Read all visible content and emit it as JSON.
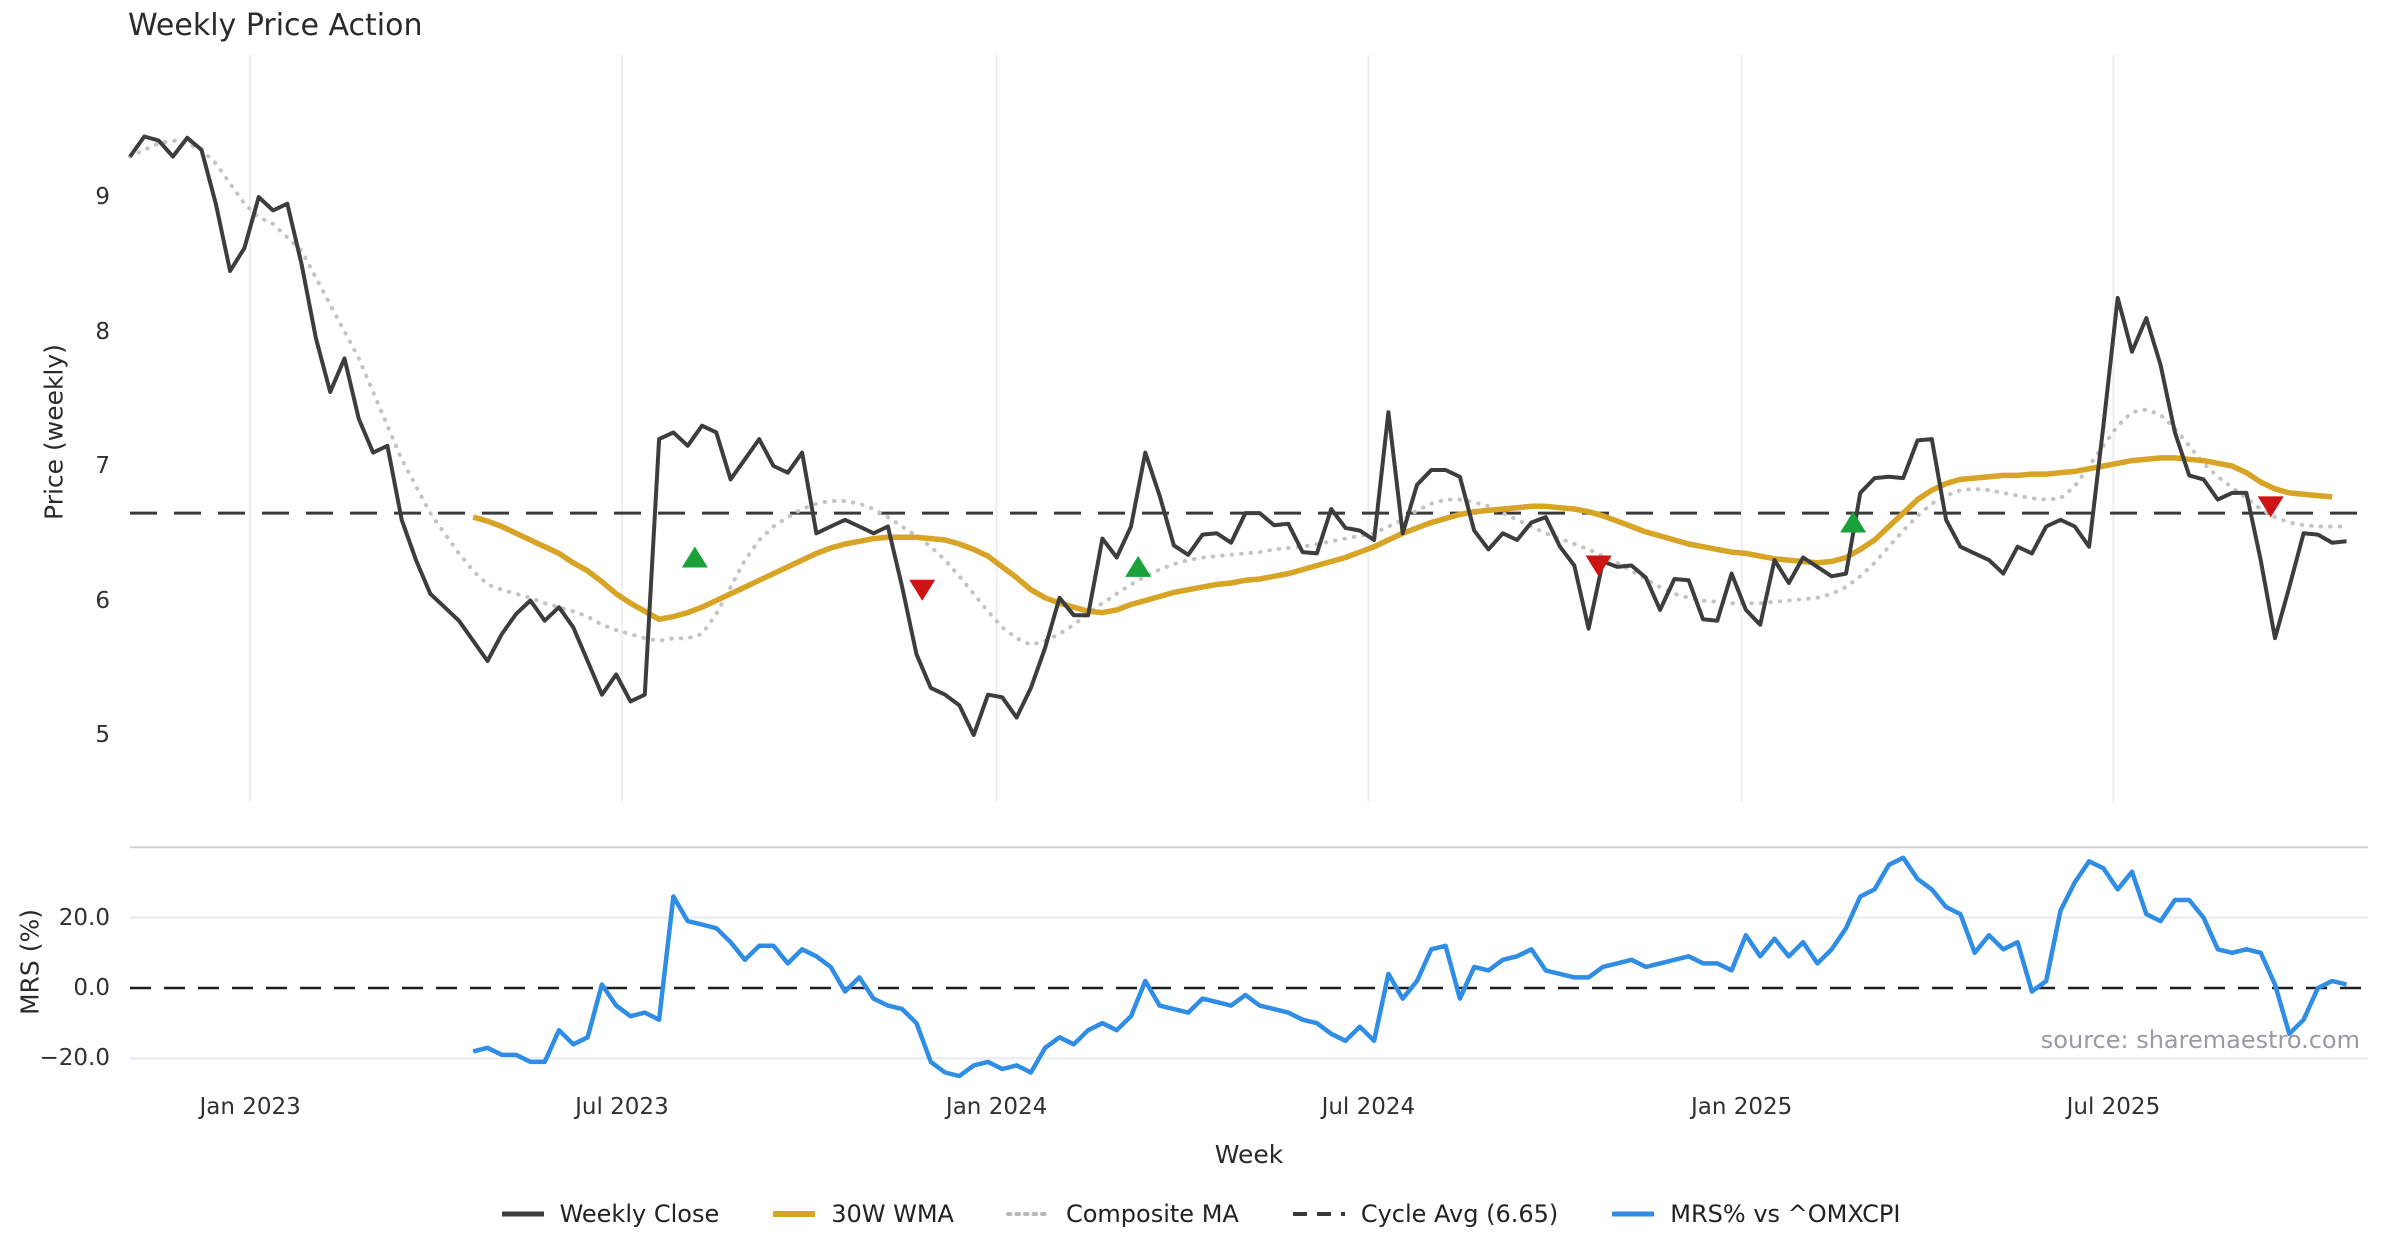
{
  "title": "Weekly Price Action",
  "axes": {
    "price_label": "Price (weekly)",
    "mrs_label": "MRS (%)",
    "x_label": "Week"
  },
  "source": "source: sharemaestro.com",
  "legend": {
    "items": [
      {
        "label": "Weekly Close",
        "style": "solid",
        "color": "#3d3d3d"
      },
      {
        "label": "30W WMA",
        "style": "solid",
        "color": "#d7a426"
      },
      {
        "label": "Composite MA",
        "style": "dotted",
        "color": "#b9b9b9"
      },
      {
        "label": "Cycle Avg (6.65)",
        "style": "dashed",
        "color": "#3a3a3a"
      },
      {
        "label": "MRS% vs ^OMXCPI",
        "style": "solid",
        "color": "#2f8de6"
      }
    ]
  },
  "chart_data": {
    "type": "line",
    "panels": [
      {
        "name": "price",
        "ylabel": "Price (weekly)",
        "ylim": [
          4.6,
          9.8
        ],
        "yticks": [
          {
            "label": "9",
            "v": 9
          },
          {
            "label": "8",
            "v": 8
          },
          {
            "label": "7",
            "v": 7
          },
          {
            "label": "6",
            "v": 6
          },
          {
            "label": "5",
            "v": 5
          }
        ],
        "reference_line": {
          "name": "Cycle Avg",
          "value": 6.65,
          "style": "dashed"
        }
      },
      {
        "name": "mrs",
        "ylabel": "MRS (%)",
        "ylim": [
          -28,
          40
        ],
        "yticks": [
          {
            "label": "20.0",
            "v": 20
          },
          {
            "label": "0.0",
            "v": 0
          },
          {
            "label": "−20.0",
            "v": -20
          }
        ],
        "reference_line": {
          "name": "zero",
          "value": 0,
          "style": "dashed"
        }
      }
    ],
    "xlabel": "Week",
    "x_unit": "weeks since 2022-11-06",
    "xticks": [
      {
        "label": "Jan 2023",
        "week": 8.4
      },
      {
        "label": "Jul 2023",
        "week": 34.4
      },
      {
        "label": "Jan 2024",
        "week": 60.6
      },
      {
        "label": "Jul 2024",
        "week": 86.6
      },
      {
        "label": "Jan 2025",
        "week": 112.7
      },
      {
        "label": "Jul 2025",
        "week": 138.7
      }
    ],
    "series": [
      {
        "name": "Weekly Close",
        "panel": "price",
        "color": "#3d3d3d",
        "style": "solid",
        "width": 4,
        "start_week": 0,
        "values": [
          9.3,
          9.45,
          9.42,
          9.3,
          9.44,
          9.35,
          8.95,
          8.45,
          8.62,
          9.0,
          8.9,
          8.95,
          8.5,
          7.95,
          7.55,
          7.8,
          7.35,
          7.1,
          7.15,
          6.6,
          6.3,
          6.05,
          5.95,
          5.85,
          5.7,
          5.55,
          5.75,
          5.9,
          6.0,
          5.85,
          5.95,
          5.8,
          5.55,
          5.3,
          5.45,
          5.25,
          5.3,
          7.2,
          7.25,
          7.15,
          7.3,
          7.25,
          6.9,
          7.05,
          7.2,
          7.0,
          6.95,
          7.1,
          6.5,
          6.55,
          6.6,
          6.55,
          6.5,
          6.55,
          6.1,
          5.6,
          5.35,
          5.3,
          5.22,
          5.0,
          5.3,
          5.28,
          5.13,
          5.35,
          5.65,
          6.02,
          5.89,
          5.89,
          6.46,
          6.32,
          6.55,
          7.1,
          6.78,
          6.41,
          6.34,
          6.49,
          6.5,
          6.43,
          6.65,
          6.65,
          6.56,
          6.57,
          6.36,
          6.35,
          6.68,
          6.54,
          6.52,
          6.45,
          7.4,
          6.5,
          6.86,
          6.97,
          6.97,
          6.92,
          6.52,
          6.38,
          6.5,
          6.45,
          6.58,
          6.62,
          6.4,
          6.26,
          5.79,
          6.29,
          6.25,
          6.26,
          6.17,
          5.93,
          6.16,
          6.15,
          5.86,
          5.85,
          6.2,
          5.93,
          5.82,
          6.3,
          6.13,
          6.32,
          6.25,
          6.18,
          6.2,
          6.8,
          6.91,
          6.92,
          6.91,
          7.19,
          7.2,
          6.6,
          6.4,
          6.35,
          6.3,
          6.2,
          6.4,
          6.35,
          6.55,
          6.6,
          6.55,
          6.4,
          7.3,
          8.25,
          7.85,
          8.1,
          7.75,
          7.25,
          6.93,
          6.9,
          6.75,
          6.8,
          6.8,
          6.3,
          5.72,
          6.1,
          6.5,
          6.49,
          6.43,
          6.44
        ]
      },
      {
        "name": "30W WMA",
        "panel": "price",
        "color": "#d7a426",
        "style": "solid",
        "width": 5.5,
        "start_week": 24,
        "values": [
          6.62,
          6.59,
          6.55,
          6.5,
          6.45,
          6.4,
          6.35,
          6.28,
          6.22,
          6.14,
          6.05,
          5.98,
          5.92,
          5.86,
          5.88,
          5.91,
          5.95,
          6.0,
          6.05,
          6.1,
          6.15,
          6.2,
          6.25,
          6.3,
          6.35,
          6.39,
          6.42,
          6.44,
          6.46,
          6.47,
          6.47,
          6.47,
          6.46,
          6.45,
          6.42,
          6.38,
          6.33,
          6.25,
          6.17,
          6.08,
          6.02,
          5.98,
          5.95,
          5.92,
          5.91,
          5.93,
          5.97,
          6.0,
          6.03,
          6.06,
          6.08,
          6.1,
          6.12,
          6.13,
          6.15,
          6.16,
          6.18,
          6.2,
          6.23,
          6.26,
          6.29,
          6.32,
          6.36,
          6.4,
          6.45,
          6.5,
          6.54,
          6.58,
          6.61,
          6.64,
          6.66,
          6.67,
          6.68,
          6.69,
          6.7,
          6.7,
          6.69,
          6.68,
          6.66,
          6.63,
          6.59,
          6.55,
          6.51,
          6.48,
          6.45,
          6.42,
          6.4,
          6.38,
          6.36,
          6.35,
          6.33,
          6.31,
          6.3,
          6.29,
          6.28,
          6.29,
          6.32,
          6.38,
          6.45,
          6.55,
          6.65,
          6.75,
          6.82,
          6.87,
          6.9,
          6.91,
          6.92,
          6.93,
          6.93,
          6.94,
          6.94,
          6.95,
          6.96,
          6.98,
          7.0,
          7.02,
          7.04,
          7.05,
          7.06,
          7.06,
          7.05,
          7.04,
          7.02,
          7.0,
          6.95,
          6.88,
          6.83,
          6.8,
          6.79,
          6.78,
          6.77
        ]
      },
      {
        "name": "Composite MA",
        "panel": "price",
        "color": "#c4c4c4",
        "style": "dotted",
        "width": 4,
        "start_week": 0,
        "values": [
          9.3,
          9.35,
          9.4,
          9.42,
          9.4,
          9.35,
          9.25,
          9.1,
          8.95,
          8.85,
          8.8,
          8.7,
          8.6,
          8.4,
          8.2,
          8.0,
          7.8,
          7.55,
          7.3,
          7.05,
          6.85,
          6.65,
          6.5,
          6.35,
          6.22,
          6.12,
          6.08,
          6.05,
          6.02,
          5.98,
          5.95,
          5.92,
          5.88,
          5.82,
          5.78,
          5.75,
          5.72,
          5.7,
          5.72,
          5.72,
          5.75,
          5.9,
          6.1,
          6.3,
          6.45,
          6.55,
          6.62,
          6.68,
          6.72,
          6.74,
          6.74,
          6.72,
          6.68,
          6.62,
          6.55,
          6.48,
          6.4,
          6.3,
          6.18,
          6.05,
          5.92,
          5.8,
          5.72,
          5.67,
          5.7,
          5.75,
          5.82,
          5.9,
          5.98,
          6.05,
          6.12,
          6.18,
          6.23,
          6.27,
          6.3,
          6.32,
          6.33,
          6.34,
          6.35,
          6.36,
          6.38,
          6.39,
          6.4,
          6.42,
          6.44,
          6.46,
          6.48,
          6.5,
          6.55,
          6.6,
          6.67,
          6.72,
          6.75,
          6.75,
          6.73,
          6.7,
          6.65,
          6.6,
          6.55,
          6.5,
          6.46,
          6.42,
          6.38,
          6.33,
          6.28,
          6.22,
          6.16,
          6.1,
          6.05,
          6.02,
          6.0,
          5.99,
          5.98,
          5.98,
          5.98,
          5.99,
          6.0,
          6.01,
          6.02,
          6.05,
          6.1,
          6.18,
          6.28,
          6.4,
          6.52,
          6.63,
          6.72,
          6.78,
          6.82,
          6.83,
          6.82,
          6.8,
          6.78,
          6.76,
          6.75,
          6.76,
          6.85,
          7.0,
          7.15,
          7.3,
          7.4,
          7.42,
          7.38,
          7.28,
          7.15,
          7.02,
          6.92,
          6.84,
          6.76,
          6.68,
          6.62,
          6.58,
          6.56,
          6.55,
          6.55,
          6.55
        ]
      },
      {
        "name": "MRS% vs ^OMXCPI",
        "panel": "mrs",
        "color": "#2f8de6",
        "style": "solid",
        "width": 4.5,
        "start_week": 24,
        "values": [
          -18,
          -17,
          -19,
          -19,
          -21,
          -21,
          -12,
          -16,
          -14,
          1,
          -5,
          -8,
          -7,
          -9,
          26,
          19,
          18,
          17,
          13,
          8,
          12,
          12,
          7,
          11,
          9,
          6,
          -1,
          3,
          -3,
          -5,
          -6,
          -10,
          -21,
          -24,
          -25,
          -22,
          -21,
          -23,
          -22,
          -24,
          -17,
          -14,
          -16,
          -12,
          -10,
          -12,
          -8,
          2,
          -5,
          -6,
          -7,
          -3,
          -4,
          -5,
          -2,
          -5,
          -6,
          -7,
          -9,
          -10,
          -13,
          -15,
          -11,
          -15,
          4,
          -3,
          2,
          11,
          12,
          -3,
          6,
          5,
          8,
          9,
          11,
          5,
          4,
          3,
          3,
          6,
          7,
          8,
          6,
          7,
          8,
          9,
          7,
          7,
          5,
          15,
          9,
          14,
          9,
          13,
          7,
          11,
          17,
          26,
          28,
          35,
          37,
          31,
          28,
          23,
          21,
          10,
          15,
          11,
          13,
          -1,
          2,
          22,
          30,
          36,
          34,
          28,
          33,
          21,
          19,
          25,
          25,
          20,
          11,
          10,
          11,
          10,
          1,
          -13,
          -9,
          0,
          2,
          1
        ]
      }
    ],
    "markers": [
      {
        "type": "buy",
        "week": 39.5,
        "price": 6.32
      },
      {
        "type": "sell",
        "week": 55.4,
        "price": 6.08
      },
      {
        "type": "buy",
        "week": 70.5,
        "price": 6.25
      },
      {
        "type": "sell",
        "week": 102.7,
        "price": 6.26
      },
      {
        "type": "buy",
        "week": 120.5,
        "price": 6.58
      },
      {
        "type": "sell",
        "week": 149.7,
        "price": 6.7
      }
    ],
    "marker_colors": {
      "buy": "#1ba13a",
      "sell": "#ce1315"
    },
    "grid_color": "#edeef3",
    "legend_position": "bottom-center"
  }
}
